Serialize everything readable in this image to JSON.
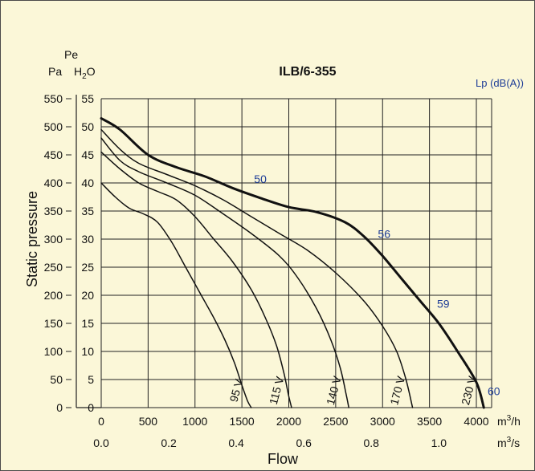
{
  "chart_data": {
    "type": "line",
    "title": "ILB/6-355",
    "ylabel": "Static pressure",
    "xlabel": "Flow",
    "y_units_left": {
      "top": "Pe",
      "pa": "Pa",
      "h2o_main": "H",
      "h2o_sub": "2",
      "h2o_end": "O"
    },
    "y_ticks_pa": [
      "0",
      "50",
      "100",
      "150",
      "200",
      "250",
      "300",
      "350",
      "400",
      "450",
      "500",
      "550"
    ],
    "y_ticks_h2o": [
      "0",
      "5",
      "10",
      "15",
      "20",
      "25",
      "30",
      "35",
      "40",
      "45",
      "50",
      "55"
    ],
    "ylim_pa": [
      0,
      550
    ],
    "x_ticks_m3h": [
      "0",
      "500",
      "1000",
      "1500",
      "2000",
      "2500",
      "3000",
      "3500",
      "4000"
    ],
    "x_unit_m3h": {
      "main": "m",
      "sup": "3",
      "end": "/h"
    },
    "x_ticks_m3s": [
      "0.0",
      "0.2",
      "0.4",
      "0.6",
      "0.8",
      "1.0"
    ],
    "x_unit_m3s": {
      "main": "m",
      "sup": "3",
      "end": "/s"
    },
    "xlim_m3h": [
      0,
      4300
    ],
    "noise_label": "Lp (dB(A))",
    "noise_levels": [
      {
        "text": "50",
        "x": 1630,
        "y": 400
      },
      {
        "text": "56",
        "x": 2950,
        "y": 302
      },
      {
        "text": "59",
        "x": 3580,
        "y": 178
      },
      {
        "text": "60",
        "x": 4120,
        "y": 22
      }
    ],
    "series": [
      {
        "name": "230 V",
        "bold": true,
        "x": [
          0,
          200,
          500,
          800,
          1100,
          1400,
          1700,
          2000,
          2300,
          2600,
          2800,
          3000,
          3200,
          3400,
          3600,
          3800,
          4000,
          4080
        ],
        "y": [
          515,
          495,
          450,
          428,
          412,
          391,
          373,
          357,
          348,
          330,
          305,
          270,
          230,
          190,
          150,
          100,
          45,
          0
        ]
      },
      {
        "name": "170 V",
        "x": [
          0,
          200,
          400,
          700,
          1000,
          1300,
          1600,
          1900,
          2200,
          2500,
          2800,
          3000,
          3150,
          3250,
          3320
        ],
        "y": [
          495,
          460,
          435,
          415,
          395,
          370,
          340,
          310,
          280,
          240,
          190,
          145,
          100,
          50,
          0
        ]
      },
      {
        "name": "140 V",
        "x": [
          0,
          200,
          400,
          700,
          1000,
          1300,
          1600,
          1900,
          2100,
          2300,
          2450,
          2550,
          2610,
          2640
        ],
        "y": [
          480,
          440,
          420,
          400,
          378,
          345,
          310,
          270,
          230,
          175,
          120,
          70,
          25,
          0
        ]
      },
      {
        "name": "115 V",
        "x": [
          0,
          200,
          400,
          600,
          800,
          1000,
          1200,
          1400,
          1600,
          1750,
          1870,
          1950,
          2000,
          2030
        ],
        "y": [
          455,
          425,
          400,
          385,
          370,
          340,
          300,
          260,
          210,
          160,
          110,
          60,
          20,
          0
        ]
      },
      {
        "name": "95 V",
        "x": [
          0,
          150,
          300,
          450,
          600,
          750,
          900,
          1050,
          1200,
          1320,
          1420,
          1500,
          1560,
          1600
        ],
        "y": [
          400,
          375,
          355,
          345,
          330,
          295,
          250,
          205,
          160,
          120,
          80,
          40,
          12,
          0
        ]
      }
    ]
  }
}
